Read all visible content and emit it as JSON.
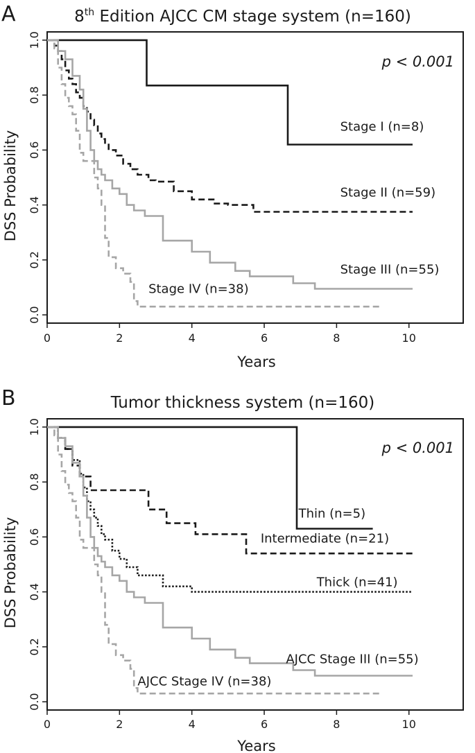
{
  "chart_data": [
    {
      "panel": "A",
      "type": "line",
      "subtype": "kaplan-meier",
      "title_prefix": "8",
      "title_sup": "th",
      "title_rest": " Edition AJCC CM stage system (n=160)",
      "xlabel": "Years",
      "ylabel": "DSS Probability",
      "xlim": [
        0,
        11.5
      ],
      "ylim": [
        -0.03,
        1.03
      ],
      "xticks": [
        0,
        2,
        4,
        6,
        8,
        10
      ],
      "yticks": [
        0.0,
        0.2,
        0.4,
        0.6,
        0.8,
        1.0
      ],
      "annotation": "p < 0.001",
      "series": [
        {
          "name": "Stage I (n=8)",
          "style": "solid",
          "color": "#1a1a1a",
          "x": [
            0,
            2.75,
            2.75,
            6.65,
            6.65,
            10.1
          ],
          "y": [
            1.0,
            1.0,
            0.835,
            0.835,
            0.62,
            0.62
          ],
          "label_x": 8.1,
          "label_y": 0.67
        },
        {
          "name": "Stage II (n=59)",
          "style": "dashed",
          "color": "#1a1a1a",
          "x": [
            0,
            0.2,
            0.3,
            0.4,
            0.5,
            0.6,
            0.7,
            0.8,
            0.9,
            1.0,
            1.1,
            1.2,
            1.3,
            1.4,
            1.5,
            1.6,
            1.7,
            1.9,
            2.1,
            2.3,
            2.5,
            2.8,
            3.0,
            3.5,
            4.0,
            4.6,
            5.0,
            5.7,
            10.1
          ],
          "y": [
            1.0,
            0.98,
            0.96,
            0.93,
            0.89,
            0.86,
            0.84,
            0.81,
            0.79,
            0.76,
            0.74,
            0.71,
            0.69,
            0.66,
            0.64,
            0.62,
            0.6,
            0.58,
            0.55,
            0.53,
            0.51,
            0.49,
            0.485,
            0.45,
            0.42,
            0.405,
            0.4,
            0.375,
            0.375
          ],
          "label_x": 8.1,
          "label_y": 0.43
        },
        {
          "name": "Stage III (n=55)",
          "style": "solid",
          "color": "#a6a6a6",
          "x": [
            0,
            0.3,
            0.5,
            0.7,
            0.9,
            1.0,
            1.1,
            1.2,
            1.3,
            1.4,
            1.5,
            1.6,
            1.8,
            2.0,
            2.2,
            2.4,
            2.7,
            3.2,
            4.0,
            4.5,
            5.2,
            5.6,
            6.2,
            6.8,
            7.4,
            10.1
          ],
          "y": [
            1.0,
            0.96,
            0.93,
            0.87,
            0.82,
            0.75,
            0.67,
            0.6,
            0.56,
            0.53,
            0.51,
            0.49,
            0.46,
            0.44,
            0.4,
            0.38,
            0.36,
            0.27,
            0.23,
            0.19,
            0.16,
            0.14,
            0.14,
            0.115,
            0.095,
            0.095
          ],
          "label_x": 8.1,
          "label_y": 0.15
        },
        {
          "name": "Stage IV (n=38)",
          "style": "dashed",
          "color": "#a6a6a6",
          "x": [
            0,
            0.2,
            0.3,
            0.4,
            0.5,
            0.6,
            0.7,
            0.8,
            0.9,
            1.0,
            1.1,
            1.3,
            1.4,
            1.5,
            1.6,
            1.7,
            1.9,
            2.1,
            2.3,
            2.4,
            2.5,
            9.2
          ],
          "y": [
            1.0,
            0.97,
            0.9,
            0.84,
            0.79,
            0.76,
            0.73,
            0.67,
            0.59,
            0.56,
            0.56,
            0.5,
            0.46,
            0.4,
            0.28,
            0.21,
            0.17,
            0.15,
            0.12,
            0.05,
            0.03,
            0.03
          ],
          "label_x": 2.8,
          "label_y": 0.08
        }
      ]
    },
    {
      "panel": "B",
      "type": "line",
      "subtype": "kaplan-meier",
      "title_prefix": "",
      "title_sup": "",
      "title_rest": "Tumor thickness system (n=160)",
      "xlabel": "Years",
      "ylabel": "DSS Probability",
      "xlim": [
        0,
        11.5
      ],
      "ylim": [
        -0.03,
        1.03
      ],
      "xticks": [
        0,
        2,
        4,
        6,
        8,
        10
      ],
      "yticks": [
        0.0,
        0.2,
        0.4,
        0.6,
        0.8,
        1.0
      ],
      "annotation": "p < 0.001",
      "series": [
        {
          "name": "Thin (n=5)",
          "style": "solid",
          "color": "#1a1a1a",
          "x": [
            0,
            6.9,
            6.9,
            9.0
          ],
          "y": [
            1.0,
            1.0,
            0.63,
            0.63
          ],
          "label_x": 6.95,
          "label_y": 0.67
        },
        {
          "name": "Intermediate (n=21)",
          "style": "dashed",
          "color": "#1a1a1a",
          "x": [
            0,
            0.3,
            0.5,
            0.7,
            0.9,
            1.2,
            2.5,
            2.8,
            3.3,
            4.1,
            5.5,
            10.1
          ],
          "y": [
            1.0,
            0.96,
            0.92,
            0.86,
            0.82,
            0.77,
            0.77,
            0.7,
            0.65,
            0.61,
            0.54,
            0.54
          ],
          "label_x": 5.9,
          "label_y": 0.58
        },
        {
          "name": "Thick (n=41)",
          "style": "dotted",
          "color": "#1a1a1a",
          "x": [
            0,
            0.3,
            0.5,
            0.7,
            0.9,
            1.0,
            1.1,
            1.2,
            1.3,
            1.4,
            1.5,
            1.6,
            1.8,
            2.0,
            2.2,
            2.5,
            3.2,
            4.0,
            10.1
          ],
          "y": [
            1.0,
            0.96,
            0.92,
            0.88,
            0.83,
            0.78,
            0.73,
            0.7,
            0.67,
            0.64,
            0.61,
            0.59,
            0.55,
            0.52,
            0.49,
            0.46,
            0.42,
            0.4,
            0.4
          ],
          "label_x": 7.45,
          "label_y": 0.42
        },
        {
          "name": "AJCC Stage III (n=55)",
          "style": "solid",
          "color": "#a6a6a6",
          "x": [
            0,
            0.3,
            0.5,
            0.7,
            0.9,
            1.0,
            1.1,
            1.2,
            1.3,
            1.4,
            1.5,
            1.6,
            1.8,
            2.0,
            2.2,
            2.4,
            2.7,
            3.2,
            4.0,
            4.5,
            5.2,
            5.6,
            6.2,
            6.8,
            7.4,
            10.1
          ],
          "y": [
            1.0,
            0.96,
            0.93,
            0.87,
            0.82,
            0.75,
            0.67,
            0.6,
            0.56,
            0.53,
            0.51,
            0.49,
            0.46,
            0.44,
            0.4,
            0.38,
            0.36,
            0.27,
            0.23,
            0.19,
            0.16,
            0.14,
            0.14,
            0.115,
            0.095,
            0.095
          ],
          "label_x": 6.6,
          "label_y": 0.14
        },
        {
          "name": "AJCC Stage IV (n=38)",
          "style": "dashed",
          "color": "#a6a6a6",
          "x": [
            0,
            0.2,
            0.3,
            0.4,
            0.5,
            0.6,
            0.7,
            0.8,
            0.9,
            1.0,
            1.1,
            1.3,
            1.4,
            1.5,
            1.6,
            1.7,
            1.9,
            2.1,
            2.3,
            2.4,
            2.5,
            9.2
          ],
          "y": [
            1.0,
            0.97,
            0.9,
            0.84,
            0.79,
            0.76,
            0.73,
            0.67,
            0.59,
            0.56,
            0.56,
            0.5,
            0.46,
            0.4,
            0.28,
            0.21,
            0.17,
            0.15,
            0.12,
            0.05,
            0.03,
            0.03
          ],
          "label_x": 2.5,
          "label_y": 0.06
        }
      ]
    }
  ]
}
